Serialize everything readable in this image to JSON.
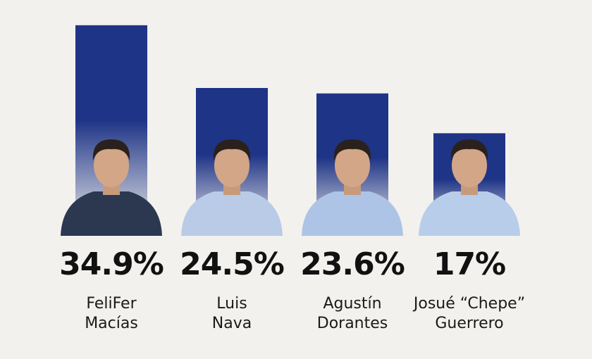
{
  "chart_data": {
    "type": "bar",
    "categories": [
      "FeliFer\nMacías",
      "Luis\nNava",
      "Agustín\nDorantes",
      "Josué “Chepe”\nGuerrero"
    ],
    "values": [
      34.9,
      24.5,
      23.6,
      17
    ],
    "value_labels": [
      "34.9%",
      "24.5%",
      "23.6%",
      "17%"
    ],
    "color": "#1e3486",
    "ylim": [
      0,
      35
    ]
  }
}
